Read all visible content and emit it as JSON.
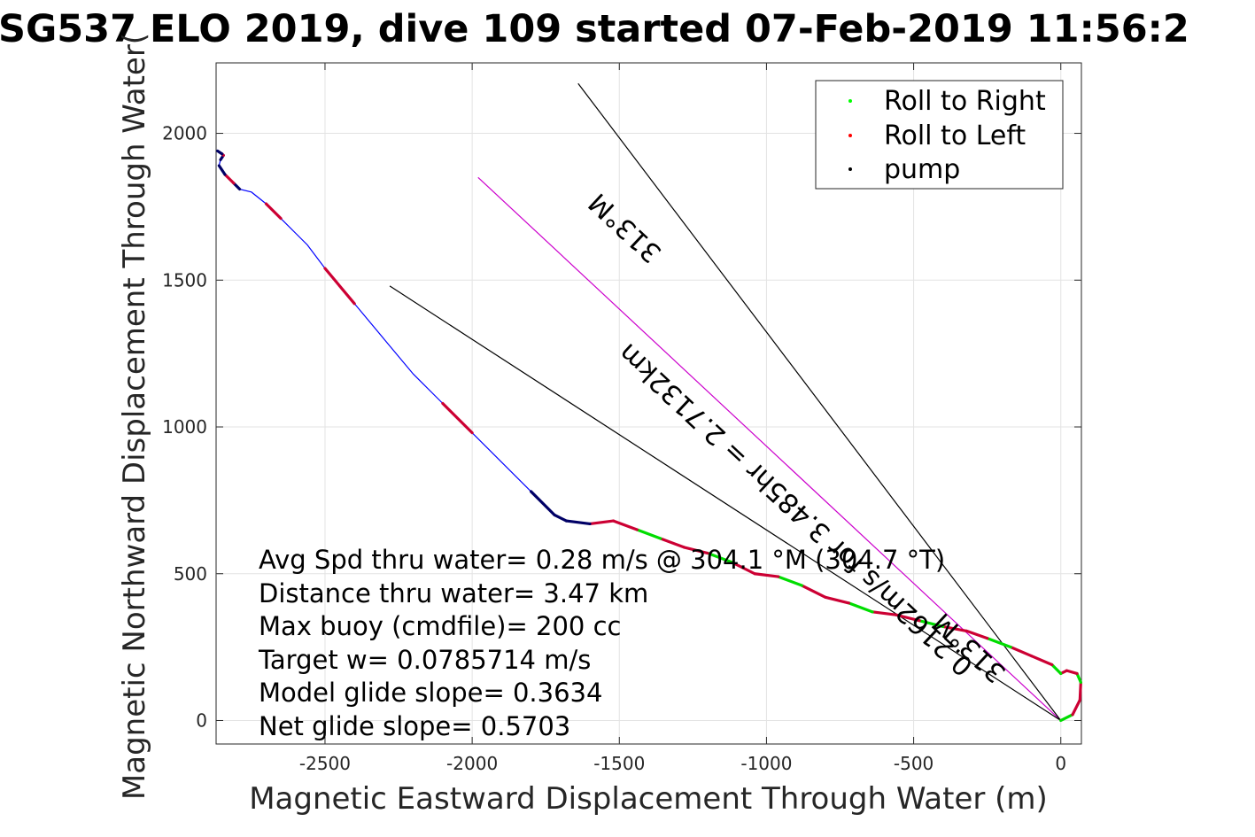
{
  "chart_data": {
    "type": "line",
    "title": "SG537 ELO 2019, dive 109 started 07-Feb-2019 11:56:2",
    "xlabel": "Magnetic Eastward Displacement Through Water (m)",
    "ylabel": "Magnetic Northward Displacement Through Water(",
    "xlim": [
      -2870,
      70
    ],
    "ylim": [
      -80,
      2240
    ],
    "xticks": [
      -2500,
      -2000,
      -1500,
      -1000,
      -500,
      0
    ],
    "yticks": [
      0,
      500,
      1000,
      1500,
      2000
    ],
    "grid": true,
    "legend_position": "top-right",
    "legend": [
      {
        "label": "Roll to Right",
        "color": "#00ff00"
      },
      {
        "label": "Roll to Left",
        "color": "#ff0000"
      },
      {
        "label": "pump",
        "color": "#000000"
      }
    ],
    "track": {
      "color": "#0000ff",
      "x": [
        0,
        40,
        65,
        68,
        55,
        20,
        0,
        -30,
        -100,
        -170,
        -250,
        -320,
        -400,
        -480,
        -560,
        -640,
        -720,
        -800,
        -880,
        -960,
        -1040,
        -1120,
        -1200,
        -1280,
        -1360,
        -1440,
        -1520,
        -1600,
        -1680,
        -1720,
        -1800,
        -1900,
        -2000,
        -2100,
        -2200,
        -2300,
        -2400,
        -2500,
        -2560,
        -2600,
        -2650,
        -2700,
        -2750,
        -2790,
        -2810,
        -2840,
        -2860,
        -2855,
        -2845,
        -2850,
        -2865
      ],
      "y": [
        0,
        20,
        70,
        130,
        160,
        170,
        160,
        190,
        220,
        250,
        280,
        305,
        320,
        340,
        360,
        370,
        400,
        420,
        460,
        490,
        500,
        540,
        570,
        590,
        620,
        650,
        680,
        670,
        680,
        700,
        780,
        880,
        980,
        1080,
        1180,
        1300,
        1420,
        1540,
        1620,
        1660,
        1710,
        1760,
        1800,
        1810,
        1830,
        1860,
        1890,
        1910,
        1925,
        1930,
        1940
      ]
    },
    "reference_lines": [
      {
        "x": [
          0,
          -1980
        ],
        "y": [
          0,
          1850
        ],
        "color": "#cc00cc"
      },
      {
        "x": [
          0,
          -2280
        ],
        "y": [
          0,
          1480
        ],
        "color": "#000000"
      },
      {
        "x": [
          0,
          -1640
        ],
        "y": [
          0,
          2170
        ],
        "color": "#000000"
      }
    ],
    "annotations": [
      {
        "text": "313°M",
        "x": -1460,
        "y": 1700
      },
      {
        "text": "0.2162m/s for 3.485hr = 2.7132km",
        "x": -880,
        "y": 740
      },
      {
        "text": "313°M",
        "x": -290,
        "y": 270
      }
    ],
    "stats": [
      "Avg Spd thru water=  0.28 m/s @ 304.1 °M (304.7 °T)",
      "Distance thru water=  3.47 km",
      "Max buoy (cmdfile)= 200 cc",
      "Target w= 0.0785714 m/s",
      "Model glide slope= 0.3634",
      "Net glide slope= 0.5703"
    ]
  }
}
